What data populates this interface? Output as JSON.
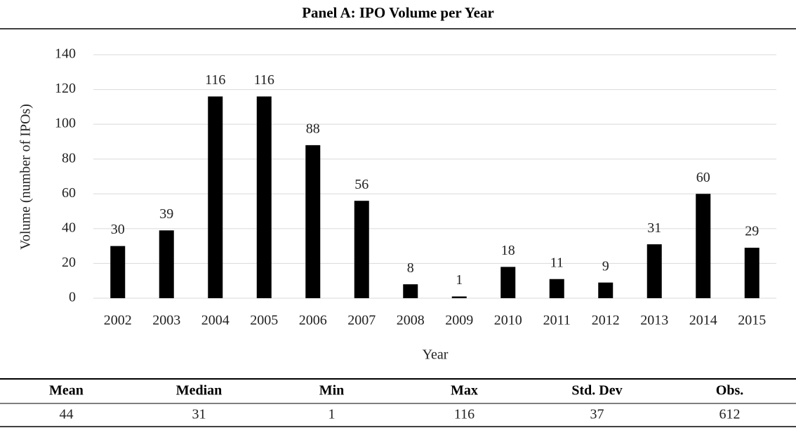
{
  "chart_data": {
    "type": "bar",
    "title": "Panel A: IPO Volume per Year",
    "x_label": "Year",
    "y_label": "Volume (number of IPOs)",
    "categories": [
      "2002",
      "2003",
      "2004",
      "2005",
      "2006",
      "2007",
      "2008",
      "2009",
      "2010",
      "2011",
      "2012",
      "2013",
      "2014",
      "2015"
    ],
    "values": [
      30,
      39,
      116,
      116,
      88,
      56,
      8,
      1,
      18,
      11,
      9,
      31,
      60,
      29
    ],
    "color": "#000000",
    "ylim": [
      0,
      140
    ],
    "yticks": [
      0,
      20,
      40,
      60,
      80,
      100,
      120,
      140
    ],
    "grid": true
  },
  "table": {
    "headers": [
      "Mean",
      "Median",
      "Min",
      "Max",
      "Std. Dev",
      "Obs."
    ],
    "rows": [
      [
        "44",
        "31",
        "1",
        "116",
        "37",
        "612"
      ]
    ]
  }
}
